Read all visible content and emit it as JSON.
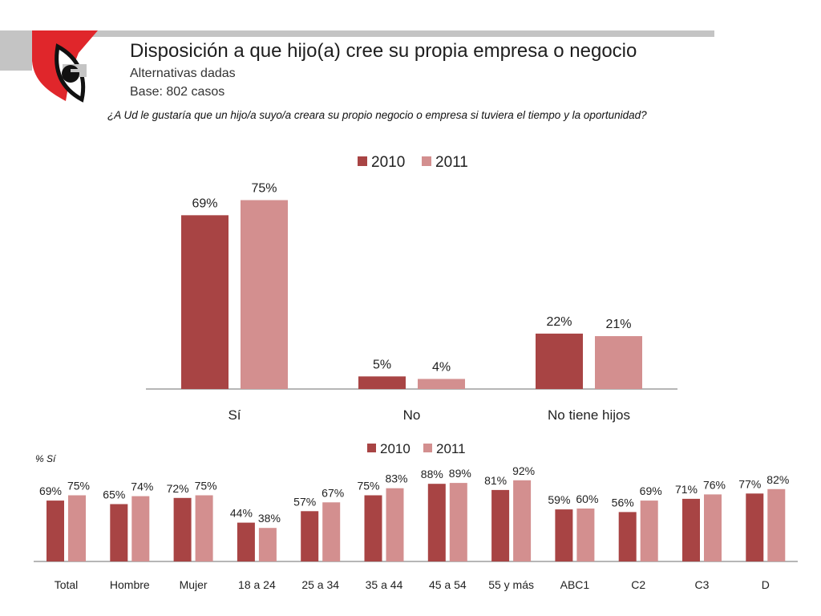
{
  "header": {
    "title": "Disposición a que hijo(a) cree su propia empresa o negocio",
    "subtitle1": "Alternativas dadas",
    "subtitle2": "Base: 802 casos",
    "question": "¿A Ud  le gustaría que un hijo/a suyo/a creara su propio negocio o empresa si tuviera el tiempo y la oportunidad?",
    "logo_icon": "eye-logo-icon"
  },
  "colors": {
    "series_2010": "#a84444",
    "series_2011": "#d38f8f",
    "axis": "#8a8a8a",
    "brand_red": "#e0262b",
    "band_gray": "#c4c4c4"
  },
  "chart_data": [
    {
      "type": "bar",
      "title": "",
      "categories": [
        "Sí",
        "No",
        "No tiene hijos"
      ],
      "series": [
        {
          "name": "2010",
          "values": [
            69,
            5,
            22
          ],
          "labels": [
            "69%",
            "5%",
            "22%"
          ]
        },
        {
          "name": "2011",
          "values": [
            75,
            4,
            21
          ],
          "labels": [
            "75%",
            "4%",
            "21%"
          ]
        }
      ],
      "legend": [
        "2010",
        "2011"
      ],
      "legend_position": "top-center",
      "xlabel": "",
      "ylabel": "",
      "ylim": [
        0,
        80
      ],
      "grid": false
    },
    {
      "type": "bar",
      "title": "",
      "axis_note": "% Sí",
      "categories": [
        "Total",
        "Hombre",
        "Mujer",
        "18 a 24",
        "25 a 34",
        "35 a 44",
        "45 a 54",
        "55 y más",
        "ABC1",
        "C2",
        "C3",
        "D"
      ],
      "series": [
        {
          "name": "2010",
          "values": [
            69,
            65,
            72,
            44,
            57,
            75,
            88,
            81,
            59,
            56,
            71,
            77
          ],
          "labels": [
            "69%",
            "65%",
            "72%",
            "44%",
            "57%",
            "75%",
            "88%",
            "81%",
            "59%",
            "56%",
            "71%",
            "77%"
          ]
        },
        {
          "name": "2011",
          "values": [
            75,
            74,
            75,
            38,
            67,
            83,
            89,
            92,
            60,
            69,
            76,
            82
          ],
          "labels": [
            "75%",
            "74%",
            "75%",
            "38%",
            "67%",
            "83%",
            "89%",
            "92%",
            "60%",
            "69%",
            "76%",
            "82%"
          ]
        }
      ],
      "legend": [
        "2010",
        "2011"
      ],
      "legend_position": "top-center",
      "xlabel": "",
      "ylabel": "",
      "ylim": [
        0,
        100
      ],
      "grid": false
    }
  ]
}
